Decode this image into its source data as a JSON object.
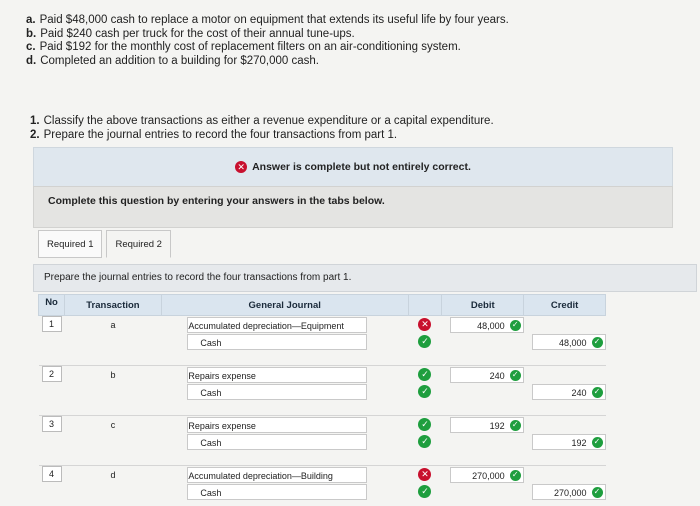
{
  "problem": [
    {
      "letter": "a.",
      "text": "Paid $48,000 cash to replace a motor on equipment that extends its useful life by four years."
    },
    {
      "letter": "b.",
      "text": "Paid $240 cash per truck for the cost of their annual tune-ups."
    },
    {
      "letter": "c.",
      "text": "Paid $192 for the monthly cost of replacement filters on an air-conditioning system."
    },
    {
      "letter": "d.",
      "text": "Completed an addition to a building for $270,000 cash."
    }
  ],
  "questions": [
    {
      "num": "1.",
      "text": "Classify the above transactions as either a revenue expenditure or a capital expenditure."
    },
    {
      "num": "2.",
      "text": "Prepare the journal entries to record the four transactions from part 1."
    }
  ],
  "banner": {
    "text": "Answer is complete but not entirely correct."
  },
  "instructions": "Complete this question by entering your answers in the tabs below.",
  "tabs": [
    {
      "label": "Required 1"
    },
    {
      "label": "Required 2"
    }
  ],
  "prepare_text": "Prepare the journal entries to record the four transactions from part 1.",
  "table": {
    "headers": {
      "no": "No",
      "transaction": "Transaction",
      "journal": "General Journal",
      "debit": "Debit",
      "credit": "Credit"
    },
    "entries": [
      {
        "no": "1",
        "tx": "a",
        "debit_acct": "Accumulated depreciation—Equipment",
        "debit_amt": "48,000",
        "credit_acct": "Cash",
        "credit_amt": "48,000",
        "mark1": "bad",
        "mark2": "ok"
      },
      {
        "no": "2",
        "tx": "b",
        "debit_acct": "Repairs expense",
        "debit_amt": "240",
        "credit_acct": "Cash",
        "credit_amt": "240",
        "mark1": "ok",
        "mark2": "ok"
      },
      {
        "no": "3",
        "tx": "c",
        "debit_acct": "Repairs expense",
        "debit_amt": "192",
        "credit_acct": "Cash",
        "credit_amt": "192",
        "mark1": "ok",
        "mark2": "ok"
      },
      {
        "no": "4",
        "tx": "d",
        "debit_acct": "Accumulated depreciation—Building",
        "debit_amt": "270,000",
        "credit_acct": "Cash",
        "credit_amt": "270,000",
        "mark1": "bad",
        "mark2": "ok"
      }
    ]
  }
}
